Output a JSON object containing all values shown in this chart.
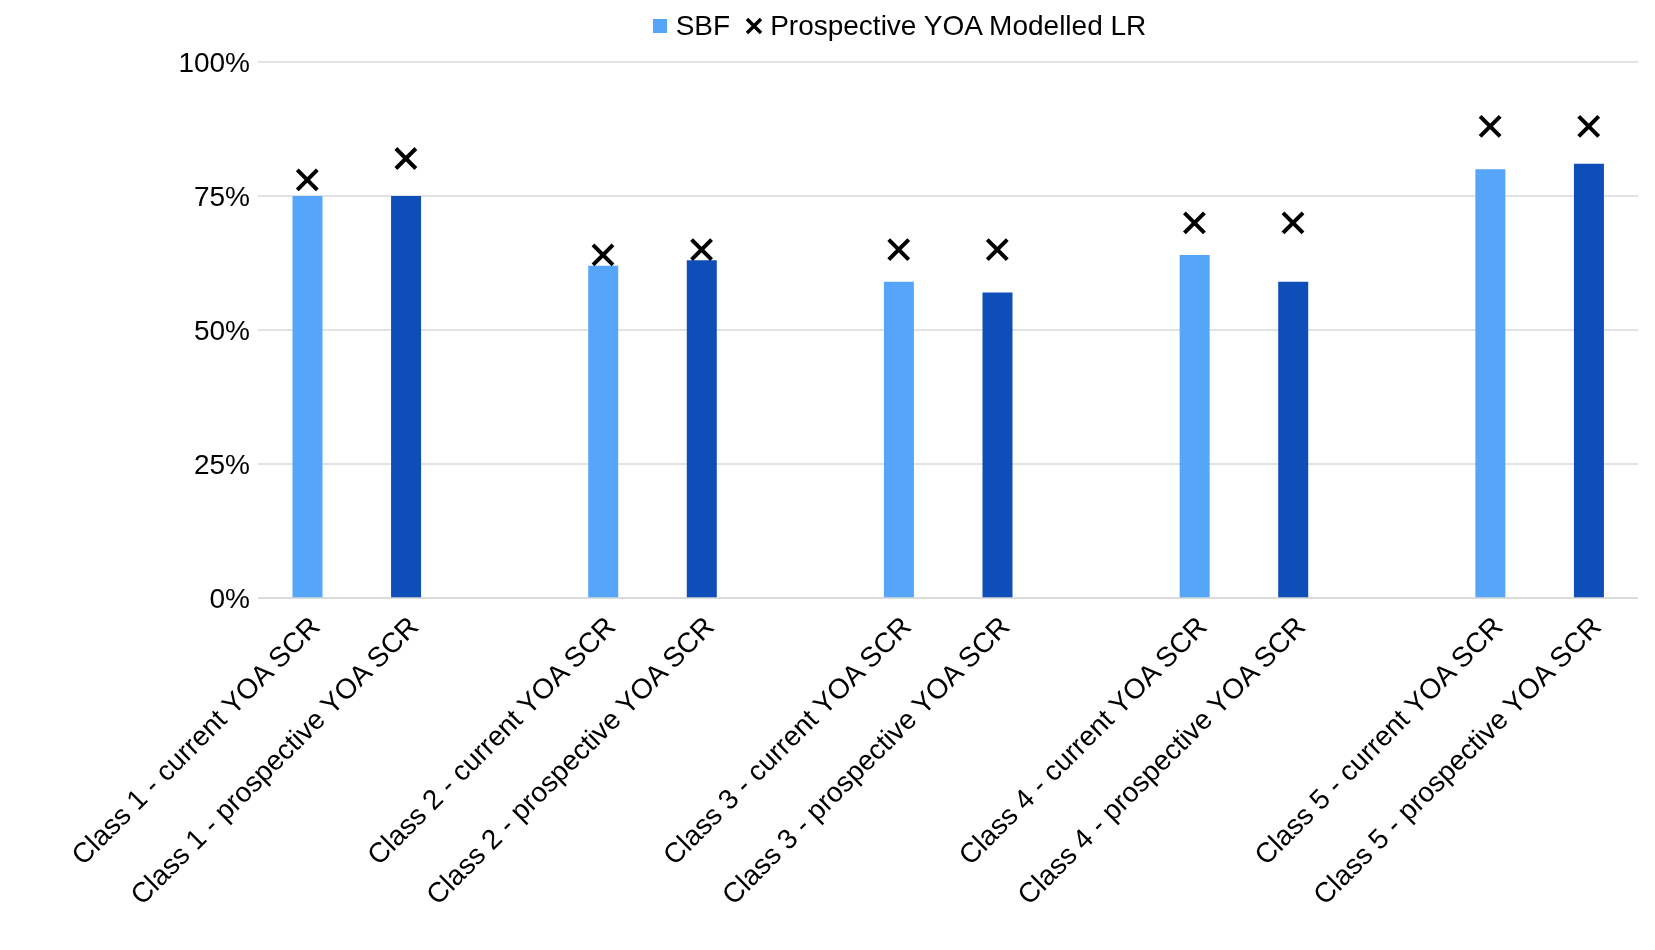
{
  "chart_data": {
    "type": "bar",
    "categories": [
      "Class 1 - current YOA SCR",
      "Class 1 - prospective YOA SCR",
      null,
      "Class 2 - current YOA SCR",
      "Class 2 - prospective YOA SCR",
      null,
      "Class 3 - current YOA SCR",
      "Class 3 - prospective YOA SCR",
      null,
      "Class 4 - current YOA SCR",
      "Class 4 - prospective YOA SCR",
      null,
      "Class 5 - current YOA SCR",
      "Class 5 - prospective YOA SCR"
    ],
    "series": [
      {
        "name": "SBF",
        "color": "#55a6fb",
        "colors": [
          "#55a6fb",
          "#0d4eb8",
          null,
          "#55a6fb",
          "#0d4eb8",
          null,
          "#55a6fb",
          "#0d4eb8",
          null,
          "#55a6fb",
          "#0d4eb8",
          null,
          "#55a6fb",
          "#0d4eb8"
        ],
        "values": [
          75,
          75,
          null,
          62,
          63,
          null,
          59,
          57,
          null,
          64,
          59,
          null,
          80,
          81
        ]
      },
      {
        "name": "Prospective YOA Modelled LR",
        "type": "scatter",
        "color": "#000000",
        "marker": "cross",
        "values": [
          78,
          82,
          null,
          64,
          65,
          null,
          65,
          65,
          null,
          70,
          70,
          null,
          88,
          88
        ]
      }
    ],
    "ylim": [
      0,
      100
    ],
    "yticks": [
      {
        "value": 0,
        "label": "0%"
      },
      {
        "value": 25,
        "label": "25%"
      },
      {
        "value": 50,
        "label": "50%"
      },
      {
        "value": 75,
        "label": "75%"
      },
      {
        "value": 100,
        "label": "100%"
      }
    ],
    "grid": "y",
    "legend": "top"
  }
}
